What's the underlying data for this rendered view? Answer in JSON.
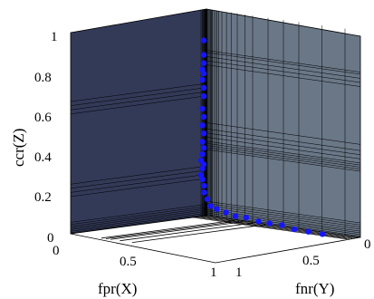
{
  "chart_data": {
    "type": "scatter",
    "projection": "3d",
    "axes": {
      "x": {
        "label": "fpr(X)",
        "range": [
          0,
          1
        ],
        "ticks": [
          "0",
          "0.5",
          "1"
        ]
      },
      "y": {
        "label": "fnr(Y)",
        "range": [
          0,
          1
        ],
        "ticks": [
          "1",
          "0.5",
          "0"
        ]
      },
      "z": {
        "label": "ccr(Z)",
        "range": [
          0,
          1
        ],
        "ticks": [
          "0",
          "0.2",
          "0.4",
          "0.6",
          "0.8",
          "1"
        ]
      }
    },
    "grid": true,
    "colors": {
      "points": "#1515ff",
      "wall_left": "#333a58",
      "wall_right": "#6a7787",
      "floor": "#ffffff",
      "lines": "#000000"
    },
    "series": [
      {
        "points": [
          [
            0.02,
            0.0,
            0.85
          ],
          [
            0.02,
            0.0,
            0.78
          ],
          [
            0.02,
            0.0,
            0.74
          ],
          [
            0.03,
            0.0,
            0.71
          ],
          [
            0.02,
            0.0,
            0.69
          ],
          [
            0.03,
            0.0,
            0.66
          ],
          [
            0.02,
            0.0,
            0.62
          ],
          [
            0.02,
            0.0,
            0.58
          ],
          [
            0.03,
            0.0,
            0.52
          ],
          [
            0.02,
            0.0,
            0.48
          ],
          [
            0.03,
            0.0,
            0.44
          ],
          [
            0.02,
            0.0,
            0.4
          ],
          [
            0.03,
            0.0,
            0.36
          ],
          [
            0.02,
            0.0,
            0.33
          ],
          [
            0.03,
            0.0,
            0.3
          ],
          [
            0.04,
            0.0,
            0.27
          ],
          [
            0.02,
            0.0,
            0.25
          ],
          [
            0.03,
            0.0,
            0.23
          ],
          [
            0.04,
            0.0,
            0.2
          ],
          [
            0.04,
            0.01,
            0.18
          ],
          [
            0.04,
            0.02,
            0.15
          ],
          [
            0.05,
            0.03,
            0.12
          ],
          [
            0.05,
            0.05,
            0.09
          ],
          [
            0.06,
            0.08,
            0.06
          ],
          [
            0.06,
            0.12,
            0.05
          ],
          [
            0.06,
            0.18,
            0.04
          ],
          [
            0.07,
            0.25,
            0.03
          ],
          [
            0.07,
            0.32,
            0.03
          ],
          [
            0.07,
            0.4,
            0.02
          ],
          [
            0.08,
            0.48,
            0.02
          ],
          [
            0.08,
            0.56,
            0.02
          ],
          [
            0.09,
            0.65,
            0.01
          ],
          [
            0.1,
            0.75,
            0.01
          ],
          [
            0.11,
            0.85,
            0.01
          ]
        ]
      }
    ]
  }
}
